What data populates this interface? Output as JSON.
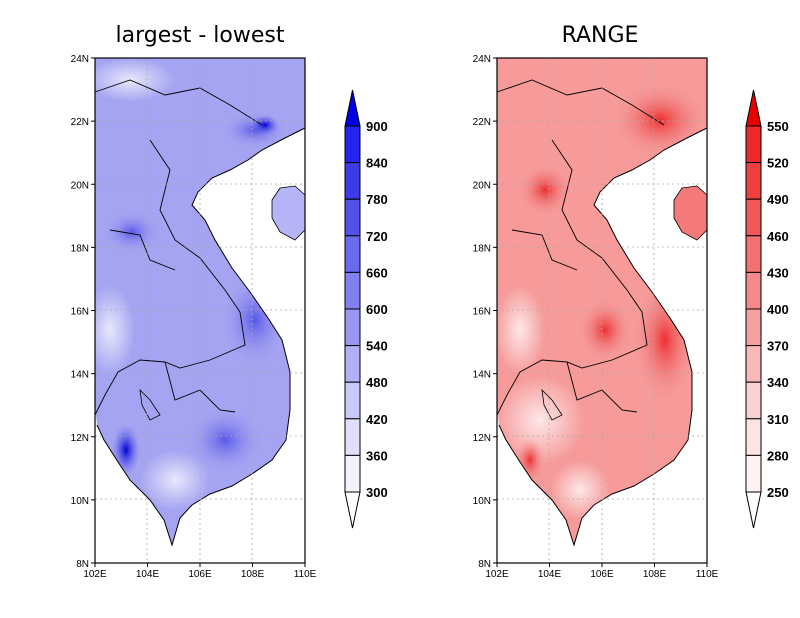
{
  "maps": [
    {
      "title": "largest - lowest",
      "colorbar": {
        "labels": [
          "900",
          "840",
          "780",
          "720",
          "660",
          "600",
          "540",
          "480",
          "420",
          "360",
          "300"
        ],
        "colors": [
          "#0000e6",
          "#2424ee",
          "#3c3ce8",
          "#5252ea",
          "#6a6aee",
          "#8080f0",
          "#9898f3",
          "#b0b0f6",
          "#c8c8f9",
          "#e0e0fc",
          "#f3f3fe",
          "#ffffff"
        ]
      },
      "region_color": "#a8a8f4",
      "hotspot_color": "#2020d8"
    },
    {
      "title": "RANGE",
      "colorbar": {
        "labels": [
          "550",
          "520",
          "490",
          "460",
          "430",
          "400",
          "370",
          "340",
          "310",
          "280",
          "250"
        ],
        "colors": [
          "#e60000",
          "#ec2a2a",
          "#ef4040",
          "#f15858",
          "#f37070",
          "#f58888",
          "#f7a0a0",
          "#f9b8b8",
          "#fbd0d0",
          "#fde4e4",
          "#fff2f2",
          "#ffffff"
        ]
      },
      "region_color": "#f48a8a",
      "hotspot_color": "#e82020"
    }
  ],
  "axes": {
    "lat_labels": [
      "24N",
      "22N",
      "20N",
      "18N",
      "16N",
      "14N",
      "12N",
      "10N",
      "8N"
    ],
    "lon_labels": [
      "102E",
      "104E",
      "106E",
      "108E",
      "110E"
    ]
  }
}
